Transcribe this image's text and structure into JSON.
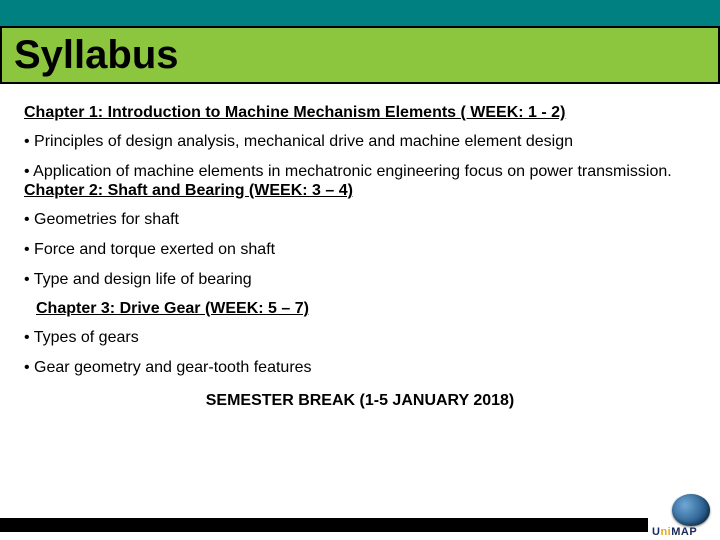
{
  "colors": {
    "top_bar": "#008080",
    "title_bg": "#8cc63f",
    "title_border": "#000000",
    "text": "#000000",
    "footer_bar": "#000000",
    "logo_blue": "#2b5f8f",
    "logo_text": "#1a2a5a",
    "logo_accent": "#e6a817"
  },
  "title": "Syllabus",
  "chapter1": {
    "heading": "Chapter 1:  Introduction to Machine Mechanism Elements ( WEEK: 1 - 2)",
    "bullets": [
      "• Principles of design analysis, mechanical drive and machine element design",
      "• Application of machine elements in mechatronic engineering focus on power transmission."
    ]
  },
  "chapter2": {
    "heading": "Chapter 2:  Shaft and Bearing (WEEK: 3 – 4)",
    "bullets": [
      "• Geometries for shaft",
      "• Force and torque exerted on shaft",
      "• Type and design life of bearing"
    ]
  },
  "chapter3": {
    "heading": "Chapter 3:  Drive Gear (WEEK: 5 – 7)",
    "bullets": [
      "• Types of gears",
      "• Gear geometry and gear-tooth features"
    ]
  },
  "semester_break": "SEMESTER BREAK (1-5 JANUARY 2018)",
  "logo": {
    "text_pre": "U",
    "text_accent": "ni",
    "text_post": "MAP"
  }
}
